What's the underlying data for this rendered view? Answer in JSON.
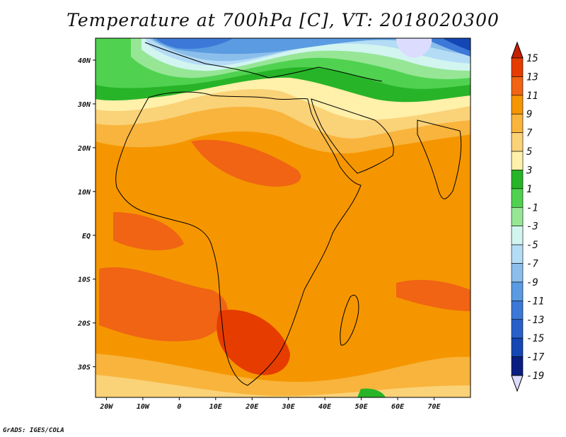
{
  "title": "Temperature at 700hPa [C], VT: 2018020300",
  "footer": "GrADS: IGES/COLA",
  "colors": {
    "background": "#ffffff",
    "frame": "#000000",
    "coast": "#000000"
  },
  "map": {
    "lon_range": [
      -23,
      80
    ],
    "lat_range": [
      -37,
      45
    ],
    "lon_ticks": [
      "20W",
      "10W",
      "0",
      "10E",
      "20E",
      "30E",
      "40E",
      "50E",
      "60E",
      "70E"
    ],
    "lat_ticks": [
      "40N",
      "30N",
      "20N",
      "10N",
      "EQ",
      "10S",
      "20S",
      "30S"
    ]
  },
  "colorbar": {
    "labels": [
      "15",
      "13",
      "11",
      "9",
      "7",
      "5",
      "3",
      "1",
      "-1",
      "-3",
      "-5",
      "-7",
      "-9",
      "-11",
      "-13",
      "-15",
      "-17",
      "-19"
    ],
    "colors": [
      "#c81e00",
      "#e63c00",
      "#f06414",
      "#f59600",
      "#f8b43c",
      "#fad278",
      "#fff0aa",
      "#28b428",
      "#50d250",
      "#96e696",
      "#d2f5f0",
      "#b4dcf5",
      "#8cbeeb",
      "#5a9be1",
      "#3c78d7",
      "#2860c8",
      "#1446b4",
      "#0a1e82",
      "#dcdcff"
    ]
  }
}
